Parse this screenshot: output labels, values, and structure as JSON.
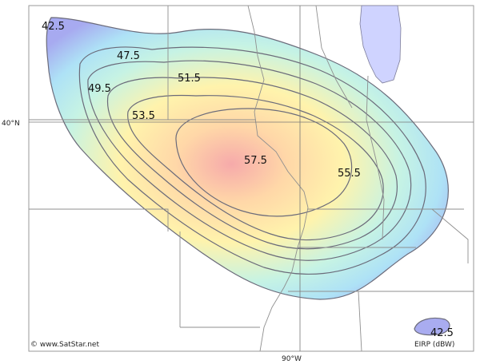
{
  "map": {
    "latitude_label": "40°N",
    "longitude_label": "90°W",
    "credit": "© www.SatStar.net",
    "legend_label": "EIRP (dBW)"
  },
  "contours": [
    {
      "label": "42.5"
    },
    {
      "label": "47.5"
    },
    {
      "label": "49.5"
    },
    {
      "label": "51.5"
    },
    {
      "label": "53.5"
    },
    {
      "label": "55.5"
    },
    {
      "label": "57.5"
    },
    {
      "label": "42.5"
    }
  ],
  "colors": {
    "outer": "#a9acf0",
    "mid_cyan": "#b9f0f0",
    "mid_yellow": "#fff2a8",
    "center": "#f7b6b2",
    "contour_line": "#6b6b7a",
    "borders": "#8a8a8a",
    "lake": "#cfd3ff"
  }
}
